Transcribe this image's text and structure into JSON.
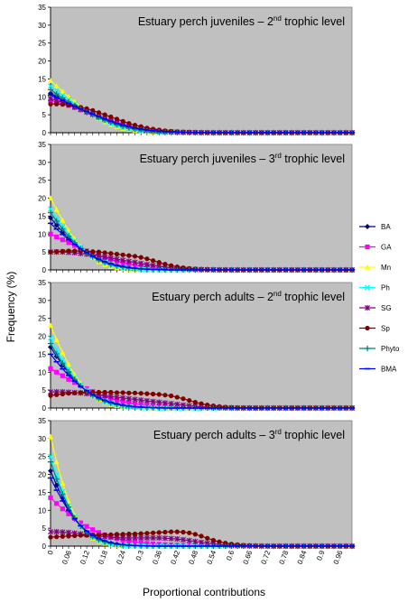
{
  "figure": {
    "ylabel": "Frequency (%)",
    "xlabel": "Proportional contributions",
    "x_tick_labels": [
      "0",
      "0.06",
      "0.12",
      "0.18",
      "0.24",
      "0.3",
      "0.36",
      "0.42",
      "0.48",
      "0.54",
      "0.6",
      "0.66",
      "0.72",
      "0.78",
      "0.84",
      "0.9",
      "0.96"
    ],
    "y_tick_labels": [
      "0",
      "5",
      "10",
      "15",
      "20",
      "25",
      "30",
      "35"
    ],
    "legend": [
      {
        "name": "BA",
        "color": "#000080",
        "marker": "diamond"
      },
      {
        "name": "GA",
        "color": "#ff00ff",
        "marker": "square"
      },
      {
        "name": "Mn",
        "color": "#ffff00",
        "marker": "triangle"
      },
      {
        "name": "Ph",
        "color": "#00ffff",
        "marker": "x"
      },
      {
        "name": "SG",
        "color": "#800080",
        "marker": "star"
      },
      {
        "name": "Sp",
        "color": "#800000",
        "marker": "circle"
      },
      {
        "name": "Phyto",
        "color": "#008080",
        "marker": "plus"
      },
      {
        "name": "BMA",
        "color": "#0000ff",
        "marker": "dash"
      }
    ],
    "plot_bg": "#c0c0c0"
  },
  "chart_data": [
    {
      "type": "line",
      "title_main": "Estuary perch juveniles – 2",
      "title_sup": "nd",
      "title_end": " trophic level",
      "ylim": [
        0,
        35
      ],
      "xlim": [
        0,
        1
      ],
      "x_step": 0.02,
      "series": [
        {
          "name": "BA",
          "values": [
            11.0,
            10.0,
            9.0,
            8.0,
            7.2,
            6.4,
            5.6,
            4.9,
            4.2,
            3.5,
            2.9,
            2.3,
            1.8,
            1.4,
            1.0,
            0.7,
            0.5,
            0.35,
            0.25,
            0.18,
            0.12,
            0.08,
            0.05,
            0.03
          ]
        },
        {
          "name": "GA",
          "values": [
            9.0,
            8.6,
            8.1,
            7.6,
            7.0,
            6.4,
            5.8,
            5.1,
            4.5,
            3.9,
            3.3,
            2.8,
            2.3,
            1.9,
            1.5,
            1.2,
            0.9,
            0.7,
            0.5,
            0.35,
            0.25,
            0.18,
            0.12,
            0.08,
            0.05,
            0.03
          ]
        },
        {
          "name": "Mn",
          "values": [
            14.5,
            13.0,
            11.5,
            10.0,
            8.6,
            7.2,
            6.0,
            4.9,
            3.9,
            3.0,
            2.3,
            1.7,
            1.2,
            0.85,
            0.6,
            0.4,
            0.28,
            0.18,
            0.12,
            0.08,
            0.05,
            0.03
          ]
        },
        {
          "name": "Ph",
          "values": [
            13.0,
            11.7,
            10.4,
            9.2,
            8.0,
            6.9,
            5.9,
            5.0,
            4.1,
            3.3,
            2.6,
            2.0,
            1.5,
            1.1,
            0.8,
            0.55,
            0.38,
            0.26,
            0.17,
            0.11,
            0.07,
            0.04
          ]
        },
        {
          "name": "SG",
          "values": [
            9.5,
            9.0,
            8.5,
            7.9,
            7.2,
            6.5,
            5.8,
            5.1,
            4.4,
            3.8,
            3.2,
            2.6,
            2.1,
            1.7,
            1.3,
            1.0,
            0.75,
            0.55,
            0.4,
            0.28,
            0.2,
            0.14,
            0.1,
            0.06,
            0.04
          ]
        },
        {
          "name": "Sp",
          "values": [
            8.0,
            8.0,
            7.9,
            7.7,
            7.4,
            7.1,
            6.7,
            6.2,
            5.6,
            5.0,
            4.4,
            3.8,
            3.2,
            2.6,
            2.1,
            1.7,
            1.3,
            1.0,
            0.75,
            0.55,
            0.4,
            0.28,
            0.2,
            0.14,
            0.1,
            0.06,
            0.04
          ]
        },
        {
          "name": "Phyto",
          "values": [
            12.0,
            10.8,
            9.7,
            8.6,
            7.6,
            6.7,
            5.8,
            5.0,
            4.2,
            3.5,
            2.8,
            2.2,
            1.7,
            1.3,
            0.95,
            0.7,
            0.5,
            0.34,
            0.23,
            0.15,
            0.1,
            0.06,
            0.04
          ]
        },
        {
          "name": "BMA",
          "values": [
            10.5,
            9.8,
            9.0,
            8.2,
            7.4,
            6.6,
            5.9,
            5.2,
            4.5,
            3.8,
            3.2,
            2.6,
            2.1,
            1.7,
            1.3,
            1.0,
            0.75,
            0.55,
            0.4,
            0.28,
            0.19,
            0.13,
            0.08,
            0.05,
            0.03
          ]
        }
      ]
    },
    {
      "type": "line",
      "title_main": "Estuary perch juveniles – 3",
      "title_sup": "rd",
      "title_end": " trophic level",
      "ylim": [
        0,
        35
      ],
      "xlim": [
        0,
        1
      ],
      "x_step": 0.02,
      "series": [
        {
          "name": "BA",
          "values": [
            14.5,
            12.5,
            10.6,
            8.8,
            7.2,
            5.8,
            4.6,
            3.6,
            2.7,
            2.0,
            1.5,
            1.1,
            0.8,
            0.55,
            0.38,
            0.25,
            0.16,
            0.1,
            0.06,
            0.04
          ]
        },
        {
          "name": "GA",
          "values": [
            10.0,
            9.2,
            8.4,
            7.6,
            6.8,
            6.0,
            5.3,
            4.6,
            4.0,
            3.4,
            2.9,
            2.4,
            2.0,
            1.6,
            1.3,
            1.0,
            0.8,
            0.6,
            0.45,
            0.33,
            0.24,
            0.17,
            0.12,
            0.08,
            0.05
          ]
        },
        {
          "name": "Mn",
          "values": [
            20.0,
            16.8,
            13.8,
            11.0,
            8.6,
            6.5,
            4.8,
            3.4,
            2.3,
            1.5,
            0.95,
            0.6,
            0.35,
            0.2,
            0.12,
            0.07,
            0.04
          ]
        },
        {
          "name": "Ph",
          "values": [
            17.0,
            14.5,
            12.2,
            10.0,
            8.1,
            6.4,
            5.0,
            3.8,
            2.8,
            2.0,
            1.4,
            0.95,
            0.62,
            0.4,
            0.25,
            0.15,
            0.09,
            0.05
          ]
        },
        {
          "name": "SG",
          "values": [
            5.0,
            5.0,
            5.0,
            4.9,
            4.8,
            4.6,
            4.4,
            4.2,
            3.9,
            3.6,
            3.3,
            3.0,
            2.7,
            2.4,
            2.1,
            1.8,
            1.5,
            1.25,
            1.0,
            0.8,
            0.6,
            0.45,
            0.32,
            0.22,
            0.15,
            0.1,
            0.06,
            0.04
          ]
        },
        {
          "name": "Sp",
          "values": [
            5.0,
            5.1,
            5.2,
            5.3,
            5.3,
            5.3,
            5.2,
            5.1,
            5.0,
            4.8,
            4.6,
            4.4,
            4.2,
            4.0,
            3.8,
            3.5,
            3.1,
            2.6,
            2.1,
            1.6,
            1.2,
            0.85,
            0.6,
            0.4,
            0.27,
            0.18,
            0.12,
            0.08,
            0.05,
            0.03
          ]
        },
        {
          "name": "Phyto",
          "values": [
            16.0,
            13.6,
            11.4,
            9.4,
            7.6,
            6.0,
            4.7,
            3.6,
            2.7,
            2.0,
            1.4,
            1.0,
            0.7,
            0.47,
            0.31,
            0.2,
            0.12,
            0.07,
            0.04
          ]
        },
        {
          "name": "BMA",
          "values": [
            13.0,
            11.4,
            9.9,
            8.4,
            7.1,
            5.9,
            4.8,
            3.8,
            3.0,
            2.3,
            1.75,
            1.3,
            0.95,
            0.68,
            0.48,
            0.33,
            0.22,
            0.14,
            0.09,
            0.05
          ]
        }
      ]
    },
    {
      "type": "line",
      "title_main": "Estuary perch adults – 2",
      "title_sup": "nd",
      "title_end": " trophic level",
      "ylim": [
        0,
        35
      ],
      "xlim": [
        0,
        1
      ],
      "x_step": 0.02,
      "series": [
        {
          "name": "BA",
          "values": [
            17.0,
            14.4,
            12.0,
            9.8,
            7.8,
            6.1,
            4.7,
            3.5,
            2.6,
            1.9,
            1.35,
            0.95,
            0.65,
            0.44,
            0.29,
            0.19,
            0.12,
            0.07,
            0.04
          ]
        },
        {
          "name": "GA",
          "values": [
            11.0,
            10.0,
            9.0,
            8.0,
            7.1,
            6.2,
            5.4,
            4.6,
            3.9,
            3.3,
            2.7,
            2.2,
            1.8,
            1.45,
            1.15,
            0.9,
            0.7,
            0.54,
            0.41,
            0.3,
            0.22,
            0.16,
            0.11,
            0.07,
            0.04
          ]
        },
        {
          "name": "Mn",
          "values": [
            23.0,
            19.0,
            15.4,
            12.1,
            9.3,
            6.9,
            5.0,
            3.5,
            2.4,
            1.6,
            1.0,
            0.65,
            0.4,
            0.24,
            0.14,
            0.08,
            0.04
          ]
        },
        {
          "name": "Ph",
          "values": [
            19.5,
            16.3,
            13.4,
            10.8,
            8.5,
            6.5,
            4.9,
            3.6,
            2.6,
            1.8,
            1.25,
            0.85,
            0.55,
            0.35,
            0.22,
            0.13,
            0.08,
            0.04
          ]
        },
        {
          "name": "SG",
          "values": [
            4.5,
            4.5,
            4.5,
            4.4,
            4.3,
            4.2,
            4.0,
            3.8,
            3.6,
            3.4,
            3.2,
            3.0,
            2.8,
            2.6,
            2.4,
            2.2,
            2.0,
            1.8,
            1.6,
            1.4,
            1.2,
            1.0,
            0.8,
            0.62,
            0.47,
            0.35,
            0.25,
            0.18,
            0.12,
            0.08,
            0.05
          ]
        },
        {
          "name": "Sp",
          "values": [
            3.5,
            3.7,
            3.9,
            4.1,
            4.2,
            4.3,
            4.4,
            4.4,
            4.4,
            4.4,
            4.4,
            4.3,
            4.3,
            4.2,
            4.2,
            4.1,
            4.0,
            3.9,
            3.8,
            3.6,
            3.4,
            3.0,
            2.6,
            2.1,
            1.6,
            1.2,
            0.85,
            0.6,
            0.4,
            0.26,
            0.17,
            0.1,
            0.06,
            0.03
          ]
        },
        {
          "name": "Phyto",
          "values": [
            18.0,
            15.1,
            12.5,
            10.1,
            8.0,
            6.2,
            4.7,
            3.5,
            2.6,
            1.85,
            1.3,
            0.9,
            0.6,
            0.39,
            0.25,
            0.15,
            0.09,
            0.05
          ]
        },
        {
          "name": "BMA",
          "values": [
            15.0,
            12.9,
            10.9,
            9.1,
            7.5,
            6.0,
            4.8,
            3.7,
            2.85,
            2.15,
            1.6,
            1.15,
            0.82,
            0.57,
            0.39,
            0.26,
            0.17,
            0.1,
            0.06,
            0.03
          ]
        }
      ]
    },
    {
      "type": "line",
      "title_main": "Estuary perch adults – 3",
      "title_sup": "rd",
      "title_end": " trophic level",
      "ylim": [
        0,
        35
      ],
      "xlim": [
        0,
        1
      ],
      "x_step": 0.02,
      "series": [
        {
          "name": "BA",
          "values": [
            21.0,
            17.0,
            13.4,
            10.2,
            7.6,
            5.5,
            3.9,
            2.7,
            1.85,
            1.25,
            0.82,
            0.53,
            0.34,
            0.21,
            0.13,
            0.08,
            0.05
          ]
        },
        {
          "name": "GA",
          "values": [
            13.5,
            11.9,
            10.4,
            9.0,
            7.7,
            6.5,
            5.5,
            4.6,
            3.8,
            3.1,
            2.55,
            2.1,
            1.7,
            1.4,
            1.15,
            0.95,
            0.78,
            0.64,
            0.52,
            0.42,
            0.34,
            0.27,
            0.21,
            0.16,
            0.12,
            0.09,
            0.06,
            0.04
          ]
        },
        {
          "name": "Mn",
          "values": [
            30.5,
            23.5,
            17.5,
            12.5,
            8.6,
            5.7,
            3.6,
            2.2,
            1.3,
            0.75,
            0.42,
            0.23,
            0.12,
            0.06,
            0.03
          ]
        },
        {
          "name": "Ph",
          "values": [
            25.0,
            19.8,
            15.2,
            11.3,
            8.1,
            5.6,
            3.8,
            2.5,
            1.6,
            1.0,
            0.62,
            0.37,
            0.22,
            0.13,
            0.07,
            0.04
          ]
        },
        {
          "name": "SG",
          "values": [
            4.0,
            4.0,
            3.9,
            3.8,
            3.6,
            3.4,
            3.2,
            3.0,
            2.8,
            2.6,
            2.5,
            2.4,
            2.3,
            2.3,
            2.3,
            2.3,
            2.3,
            2.3,
            2.3,
            2.2,
            2.1,
            2.0,
            1.8,
            1.55,
            1.3,
            1.05,
            0.82,
            0.62,
            0.45,
            0.32,
            0.22,
            0.15,
            0.1,
            0.06,
            0.04
          ]
        },
        {
          "name": "Sp",
          "values": [
            2.5,
            2.6,
            2.7,
            2.8,
            2.9,
            3.0,
            3.0,
            3.1,
            3.1,
            3.2,
            3.2,
            3.3,
            3.3,
            3.4,
            3.4,
            3.5,
            3.6,
            3.7,
            3.8,
            3.9,
            4.0,
            4.0,
            3.9,
            3.7,
            3.3,
            2.8,
            2.2,
            1.65,
            1.2,
            0.85,
            0.58,
            0.4,
            0.26,
            0.17,
            0.11,
            0.07,
            0.04
          ]
        },
        {
          "name": "Phyto",
          "values": [
            23.5,
            18.7,
            14.5,
            10.9,
            7.9,
            5.6,
            3.85,
            2.6,
            1.7,
            1.1,
            0.7,
            0.44,
            0.27,
            0.16,
            0.09,
            0.05
          ]
        },
        {
          "name": "BMA",
          "values": [
            19.0,
            15.6,
            12.6,
            9.9,
            7.6,
            5.7,
            4.2,
            3.0,
            2.1,
            1.45,
            0.98,
            0.65,
            0.42,
            0.27,
            0.17,
            0.1,
            0.06,
            0.03
          ]
        }
      ]
    }
  ]
}
